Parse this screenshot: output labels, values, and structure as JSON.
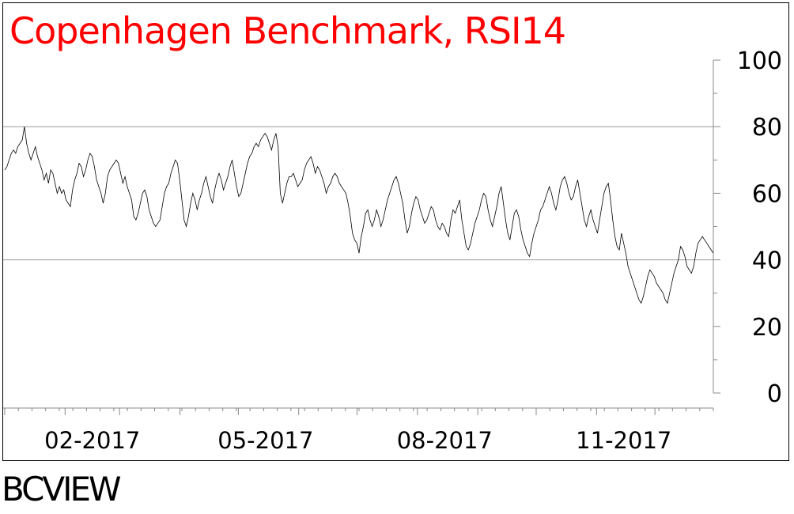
{
  "chart_data": {
    "type": "line",
    "title": "Copenhagen Benchmark, RSI14",
    "xlabel": "",
    "ylabel": "",
    "ylim": [
      0,
      100
    ],
    "yticks": [
      0,
      20,
      40,
      60,
      80,
      100
    ],
    "xlim": [
      "2017-01-01",
      "2017-12-31"
    ],
    "xtick_labels": [
      {
        "label": "02-2017",
        "date": "2017-02-15"
      },
      {
        "label": "05-2017",
        "date": "2017-05-15"
      },
      {
        "label": "08-2017",
        "date": "2017-08-15"
      },
      {
        "label": "11-2017",
        "date": "2017-11-15"
      }
    ],
    "reference_lines": [
      80,
      40
    ],
    "grid": false,
    "legend": "none",
    "colors": {
      "title": "#ff0000",
      "series": "#000000",
      "reference": "#999999"
    },
    "series": [
      {
        "values": [
          67,
          68,
          70,
          72,
          73,
          72,
          74,
          75,
          76,
          80,
          75,
          72,
          70,
          72,
          74,
          71,
          69,
          67,
          64,
          66,
          63,
          67,
          66,
          63,
          60,
          62,
          60,
          61,
          58,
          57,
          56,
          61,
          64,
          66,
          69,
          68,
          65,
          67,
          70,
          72,
          71,
          68,
          64,
          62,
          60,
          57,
          60,
          65,
          67,
          68,
          69,
          70,
          69,
          66,
          63,
          65,
          62,
          60,
          58,
          53,
          52,
          54,
          57,
          60,
          61,
          59,
          55,
          53,
          51,
          50,
          51,
          52,
          56,
          60,
          62,
          63,
          66,
          68,
          70,
          69,
          64,
          58,
          52,
          50,
          53,
          57,
          60,
          58,
          55,
          58,
          60,
          63,
          65,
          62,
          59,
          57,
          61,
          64,
          66,
          64,
          61,
          63,
          65,
          68,
          70,
          66,
          62,
          59,
          60,
          63,
          66,
          69,
          71,
          72,
          74,
          75,
          74,
          76,
          77,
          78,
          77,
          75,
          73,
          76,
          78,
          74,
          60,
          57,
          60,
          63,
          65,
          65,
          66,
          64,
          62,
          63,
          64,
          67,
          69,
          70,
          71,
          69,
          66,
          68,
          67,
          65,
          63,
          60,
          62,
          63,
          65,
          66,
          65,
          63,
          62,
          61,
          60,
          57,
          53,
          48,
          46,
          45,
          42,
          47,
          50,
          54,
          55,
          52,
          50,
          52,
          55,
          53,
          50,
          52,
          55,
          58,
          60,
          62,
          64,
          65,
          63,
          60,
          57,
          52,
          48,
          50,
          54,
          57,
          59,
          58,
          55,
          53,
          51,
          52,
          54,
          56,
          55,
          52,
          50,
          49,
          51,
          50,
          48,
          47,
          52,
          55,
          54,
          56,
          58,
          52,
          48,
          44,
          43,
          45,
          48,
          51,
          53,
          55,
          58,
          60,
          59,
          55,
          52,
          50,
          53,
          56,
          60,
          62,
          57,
          52,
          48,
          46,
          50,
          54,
          55,
          53,
          49,
          46,
          44,
          42,
          41,
          45,
          48,
          50,
          52,
          55,
          56,
          58,
          60,
          62,
          60,
          57,
          55,
          58,
          62,
          64,
          65,
          63,
          60,
          58,
          59,
          62,
          64,
          60,
          56,
          52,
          50,
          53,
          55,
          52,
          50,
          48,
          52,
          56,
          60,
          62,
          63,
          58,
          52,
          47,
          44,
          43,
          48,
          45,
          42,
          38,
          36,
          34,
          32,
          30,
          28,
          27,
          29,
          32,
          35,
          37,
          36,
          35,
          33,
          32,
          31,
          30,
          28,
          27,
          30,
          33,
          36,
          38,
          40,
          44,
          43,
          41,
          38,
          37,
          36,
          38,
          42,
          45,
          46,
          47,
          46,
          45,
          44,
          43,
          42
        ]
      }
    ]
  },
  "brand": "BCVIEW"
}
